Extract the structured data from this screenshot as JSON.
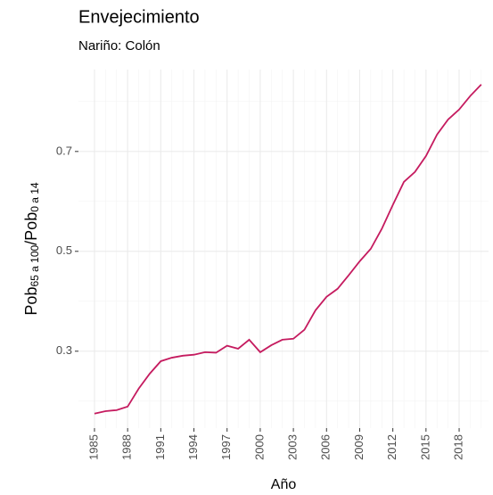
{
  "chart_data": {
    "type": "line",
    "title": "Envejecimiento",
    "subtitle": "Nariño: Colón",
    "x_label": "Año",
    "y_label": {
      "base": "Pob",
      "sub1": "65 a 100",
      "sep": "/Pob",
      "sub2": "0 a 14"
    },
    "x": [
      1985,
      1986,
      1987,
      1988,
      1989,
      1990,
      1991,
      1992,
      1993,
      1994,
      1995,
      1996,
      1997,
      1998,
      1999,
      2000,
      2001,
      2002,
      2003,
      2004,
      2005,
      2006,
      2007,
      2008,
      2009,
      2010,
      2011,
      2012,
      2013,
      2014,
      2015,
      2016,
      2017,
      2018,
      2019,
      2020
    ],
    "series": [
      {
        "name": "Colón",
        "color": "#c51b5f",
        "values": [
          0.175,
          0.18,
          0.182,
          0.189,
          0.225,
          0.255,
          0.28,
          0.287,
          0.291,
          0.293,
          0.298,
          0.297,
          0.311,
          0.305,
          0.323,
          0.298,
          0.312,
          0.323,
          0.325,
          0.343,
          0.382,
          0.409,
          0.425,
          0.452,
          0.48,
          0.505,
          0.545,
          0.593,
          0.639,
          0.659,
          0.691,
          0.734,
          0.764,
          0.784,
          0.811,
          0.834
        ]
      }
    ],
    "xlim": [
      1983.55,
      2020.66
    ],
    "ylim": [
      0.146,
      0.864
    ],
    "xticks": [
      1985,
      1988,
      1991,
      1994,
      1997,
      2000,
      2003,
      2006,
      2009,
      2012,
      2015,
      2018
    ],
    "yticks": [
      0.3,
      0.5,
      0.7
    ],
    "yminor": [
      0.2,
      0.4,
      0.6,
      0.8
    ],
    "grid": true
  }
}
